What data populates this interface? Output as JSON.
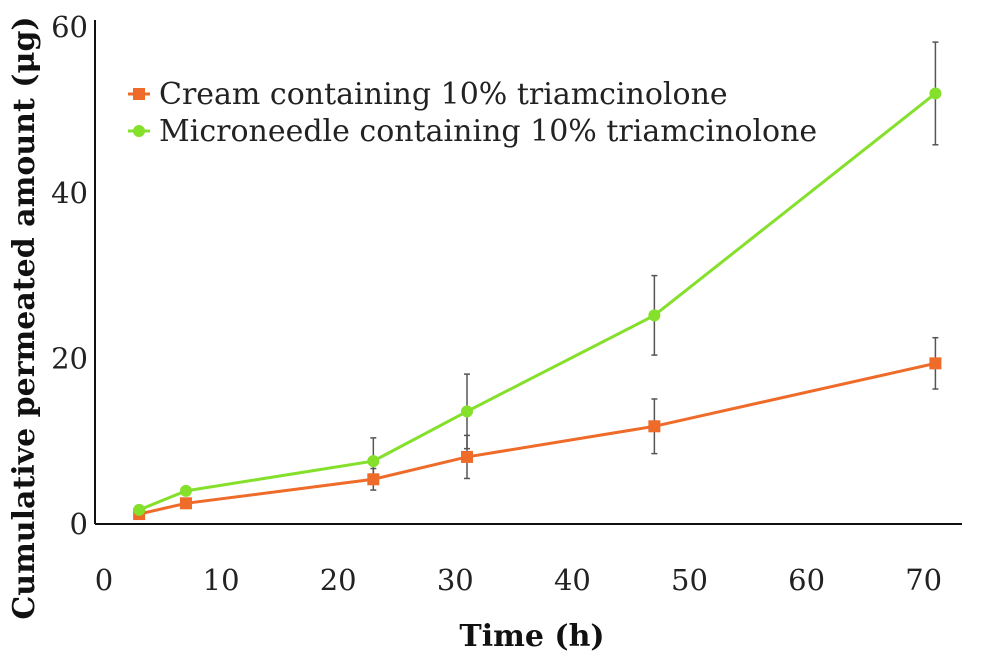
{
  "chart_data": {
    "type": "line",
    "title": "",
    "xlabel": "Time (h)",
    "ylabel": "Cumulative permeated amount (μg)",
    "xlim": [
      0,
      75
    ],
    "ylim": [
      0,
      60
    ],
    "x_ticks": [
      0,
      10,
      20,
      30,
      40,
      50,
      60,
      70
    ],
    "y_ticks": [
      0,
      20,
      40,
      60
    ],
    "grid": false,
    "legend_position": "top-left",
    "series": [
      {
        "name": "Cream containing 10% triamcinolone",
        "color": "#ee6b2a",
        "marker": "square",
        "x": [
          3,
          7,
          23,
          31,
          47,
          71
        ],
        "y": [
          1.2,
          2.5,
          5.4,
          8.1,
          11.8,
          19.4
        ],
        "error": [
          0.3,
          0.4,
          1.3,
          2.6,
          3.3,
          3.1
        ]
      },
      {
        "name": "Microneedle containing 10% triamcinolone",
        "color": "#84e02a",
        "marker": "circle",
        "x": [
          3,
          7,
          23,
          31,
          47,
          71
        ],
        "y": [
          1.7,
          4.0,
          7.6,
          13.6,
          25.2,
          52.0
        ],
        "error": [
          0.3,
          0.4,
          2.8,
          4.5,
          4.8,
          6.2
        ]
      }
    ]
  }
}
